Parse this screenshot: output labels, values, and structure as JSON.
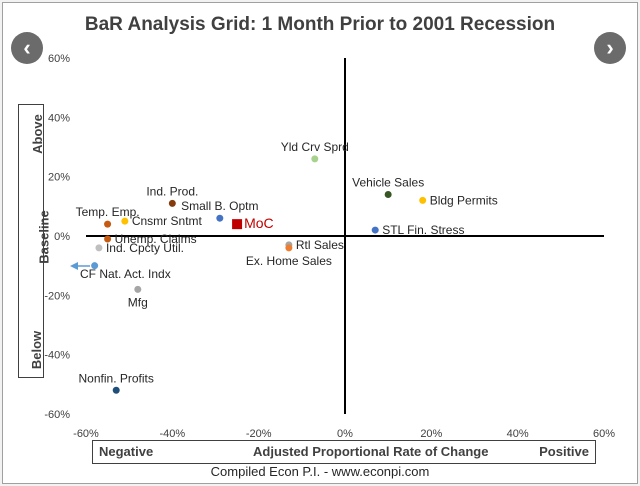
{
  "title": "BaR Analysis Grid: 1 Month Prior to 2001 Recession",
  "nav": {
    "prev_icon": "chevron-left-icon",
    "next_icon": "chevron-right-icon",
    "prev_glyph": "‹",
    "next_glyph": "›"
  },
  "side_labels": {
    "above": "Above",
    "baseline": "Baseline",
    "below": "Below"
  },
  "x_axis_box": {
    "left": "Negative",
    "center": "Adjusted Proportional Rate of Change",
    "right": "Positive"
  },
  "footer": "Compiled Econ P.I. - www.econpi.com",
  "chart_data": {
    "type": "scatter",
    "xlim": [
      -60,
      60
    ],
    "ylim": [
      -60,
      60
    ],
    "x_ticks": [
      "-60%",
      "-40%",
      "-20%",
      "0%",
      "20%",
      "40%",
      "60%"
    ],
    "y_ticks": [
      "60%",
      "40%",
      "20%",
      "0%",
      "-20%",
      "-40%",
      "-60%"
    ],
    "grid": false,
    "points": [
      {
        "label": "Yld Crv Sprd",
        "x": -7,
        "y": 26,
        "color": "#a9d18e",
        "anchor": "above"
      },
      {
        "label": "Vehicle Sales",
        "x": 10,
        "y": 14,
        "color": "#375623",
        "anchor": "above"
      },
      {
        "label": "Bldg Permits",
        "x": 18,
        "y": 12,
        "color": "#ffc000",
        "anchor": "right"
      },
      {
        "label": "STL Fin. Stress",
        "x": 7,
        "y": 2,
        "color": "#4472c4",
        "anchor": "right"
      },
      {
        "label": "Ind. Prod.",
        "x": -40,
        "y": 11,
        "color": "#843c0c",
        "anchor": "above"
      },
      {
        "label": "Small B. Optm",
        "x": -29,
        "y": 6,
        "color": "#4472c4",
        "anchor": "above"
      },
      {
        "label": "MoC",
        "x": -25,
        "y": 4,
        "color": "#c00000",
        "anchor": "right",
        "size": "large"
      },
      {
        "label": "Temp. Emp.",
        "x": -55,
        "y": 4,
        "color": "#c55a11",
        "anchor": "above"
      },
      {
        "label": "Cnsmr Sntmt",
        "x": -51,
        "y": 5,
        "color": "#ffc000",
        "anchor": "right"
      },
      {
        "label": "Unemp. Claims",
        "x": -55,
        "y": -1,
        "color": "#c55a11",
        "anchor": "right"
      },
      {
        "label": "Ind. Cpcty Util.",
        "x": -57,
        "y": -4,
        "color": "#bfbfbf",
        "anchor": "right"
      },
      {
        "label": "Rtl Sales",
        "x": -13,
        "y": -3,
        "color": "#a5a5a5",
        "anchor": "right"
      },
      {
        "label": "Ex. Home Sales",
        "x": -13,
        "y": -4,
        "color": "#ed7d31",
        "anchor": "below"
      },
      {
        "label": "CF Nat. Act. Indx",
        "x": -58,
        "y": -10,
        "color": "#5b9bd5",
        "anchor": "arrow"
      },
      {
        "label": "Mfg",
        "x": -48,
        "y": -18,
        "color": "#a5a5a5",
        "anchor": "below"
      },
      {
        "label": "Nonfin. Profits",
        "x": -53,
        "y": -52,
        "color": "#1f4e79",
        "anchor": "above"
      }
    ]
  }
}
